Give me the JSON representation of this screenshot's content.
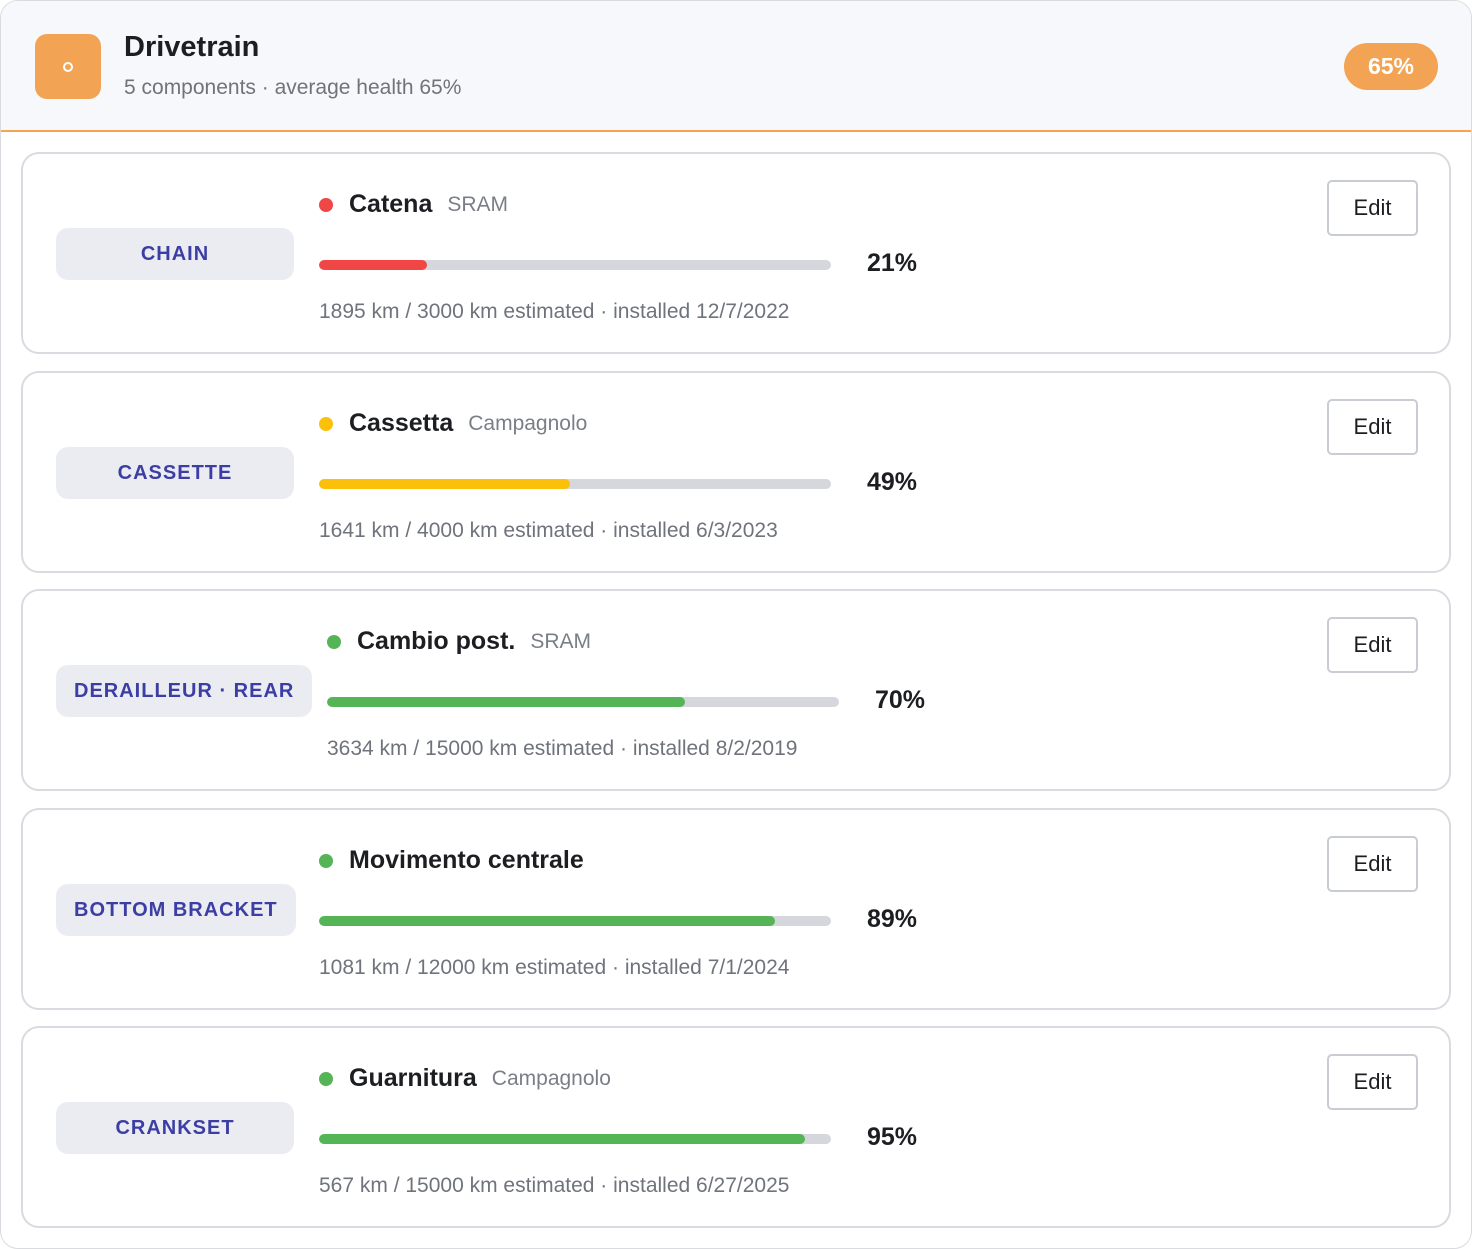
{
  "group": {
    "title": "Drivetrain",
    "subtitle": "5 components · average health 65%",
    "badge": "65%",
    "accent_color": "#f2a454",
    "icon": "gear-icon"
  },
  "edit_label": "Edit",
  "components": [
    {
      "category": "CHAIN",
      "name": "Catena",
      "brand": "SRAM",
      "percent_label": "21%",
      "health": 21,
      "status_color": "#f04646",
      "meta": "1895 km / 3000 km estimated · installed 12/7/2022"
    },
    {
      "category": "CASSETTE",
      "name": "Cassetta",
      "brand": "Campagnolo",
      "percent_label": "49%",
      "health": 49,
      "status_color": "#fbc10a",
      "meta": "1641 km / 4000 km estimated · installed 6/3/2023"
    },
    {
      "category": "DERAILLEUR · REAR",
      "name": "Cambio post.",
      "brand": "SRAM",
      "percent_label": "70%",
      "health": 70,
      "status_color": "#55b455",
      "meta": "3634 km / 15000 km estimated · installed 8/2/2019"
    },
    {
      "category": "BOTTOM BRACKET",
      "name": "Movimento centrale",
      "brand": "",
      "percent_label": "89%",
      "health": 89,
      "status_color": "#55b455",
      "meta": "1081 km / 12000 km estimated · installed 7/1/2024"
    },
    {
      "category": "CRANKSET",
      "name": "Guarnitura",
      "brand": "Campagnolo",
      "percent_label": "95%",
      "health": 95,
      "status_color": "#55b455",
      "meta": "567 km / 15000 km estimated · installed 6/27/2025"
    }
  ]
}
